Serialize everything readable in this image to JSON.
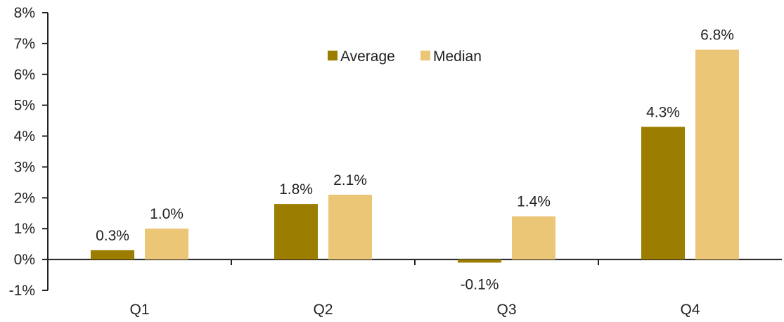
{
  "chart_data": {
    "type": "bar",
    "title": "",
    "xlabel": "",
    "ylabel": "",
    "categories": [
      "Q1",
      "Q2",
      "Q3",
      "Q4"
    ],
    "series": [
      {
        "name": "Average",
        "values": [
          0.3,
          1.8,
          -0.1,
          4.3
        ],
        "labels": [
          "0.3%",
          "1.8%",
          "-0.1%",
          "4.3%"
        ],
        "color": "#9b7e00"
      },
      {
        "name": "Median",
        "values": [
          1.0,
          2.1,
          1.4,
          6.8
        ],
        "labels": [
          "1.0%",
          "2.1%",
          "1.4%",
          "6.8%"
        ],
        "color": "#ecc677"
      }
    ],
    "ylim": [
      -1,
      8
    ],
    "yticks": [
      -1,
      0,
      1,
      2,
      3,
      4,
      5,
      6,
      7,
      8
    ],
    "ytick_labels": [
      "-1%",
      "0%",
      "1%",
      "2%",
      "3%",
      "4%",
      "5%",
      "6%",
      "7%",
      "8%"
    ],
    "grid": false,
    "legend_position": "top-center"
  }
}
